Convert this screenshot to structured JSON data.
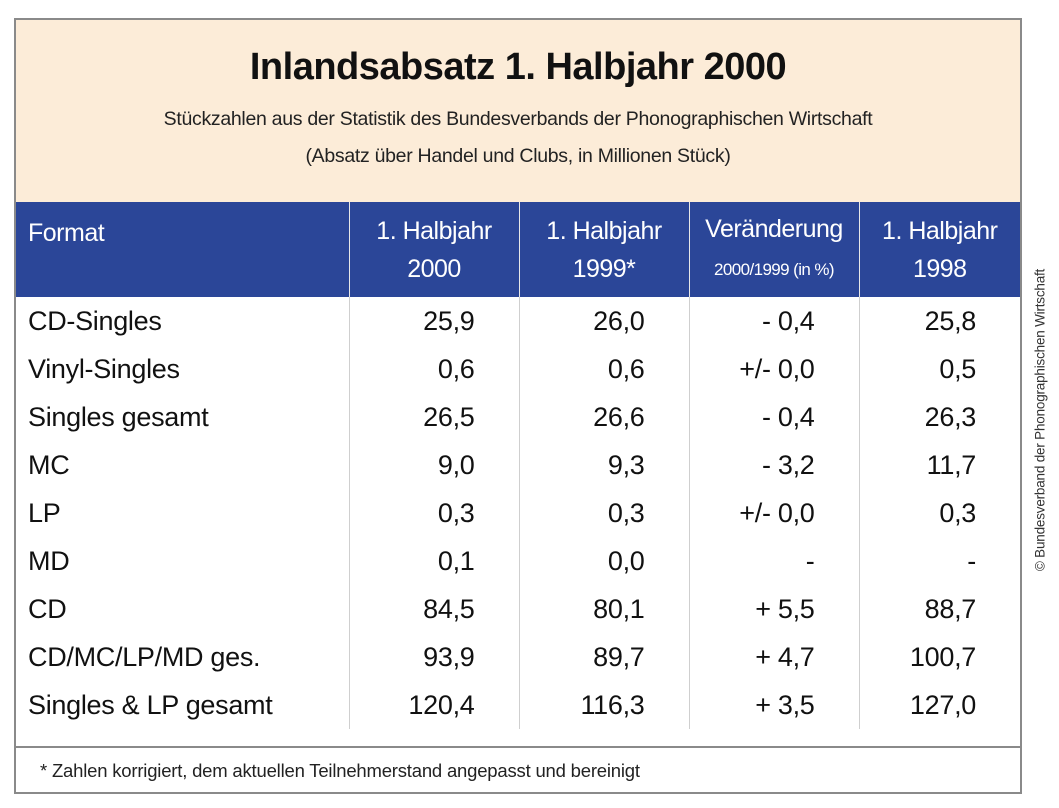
{
  "chart_data": {
    "type": "table",
    "title": "Inlandsabsatz 1. Halbjahr 2000",
    "subtitle": "Stückzahlen aus der Statistik des Bundesverbands der Phonographischen Wirtschaft",
    "subtitle2": "(Absatz über Handel und Clubs, in Millionen Stück)",
    "columns": [
      {
        "line1": "Format",
        "line2": ""
      },
      {
        "line1": "1. Halbjahr",
        "line2": "2000"
      },
      {
        "line1": "1. Halbjahr",
        "line2": "1999*"
      },
      {
        "line1": "Veränderung",
        "line2": "2000/1999 (in %)"
      },
      {
        "line1": "1. Halbjahr",
        "line2": "1998"
      }
    ],
    "rows": [
      [
        "CD-Singles",
        "25,9",
        "26,0",
        "- 0,4",
        "25,8"
      ],
      [
        "Vinyl-Singles",
        "0,6",
        "0,6",
        "+/- 0,0",
        "0,5"
      ],
      [
        "Singles gesamt",
        "26,5",
        "26,6",
        "- 0,4",
        "26,3"
      ],
      [
        "MC",
        "9,0",
        "9,3",
        "- 3,2",
        "11,7"
      ],
      [
        "LP",
        "0,3",
        "0,3",
        "+/- 0,0",
        "0,3"
      ],
      [
        "MD",
        "0,1",
        "0,0",
        "-",
        "-"
      ],
      [
        "CD",
        "84,5",
        "80,1",
        "+ 5,5",
        "88,7"
      ],
      [
        "CD/MC/LP/MD ges.",
        "93,9",
        "89,7",
        "+ 4,7",
        "100,7"
      ],
      [
        "Singles & LP gesamt",
        "120,4",
        "116,3",
        "+ 3,5",
        "127,0"
      ]
    ],
    "footnote": "* Zahlen korrigiert, dem aktuellen Teilnehmerstand angepasst und bereinigt",
    "credit": "© Bundesverband der Phonographischen Wirtschaft",
    "colors": {
      "header_bg": "#fcecd8",
      "column_header_bg": "#2b4698",
      "column_header_text": "#ffffff"
    }
  }
}
